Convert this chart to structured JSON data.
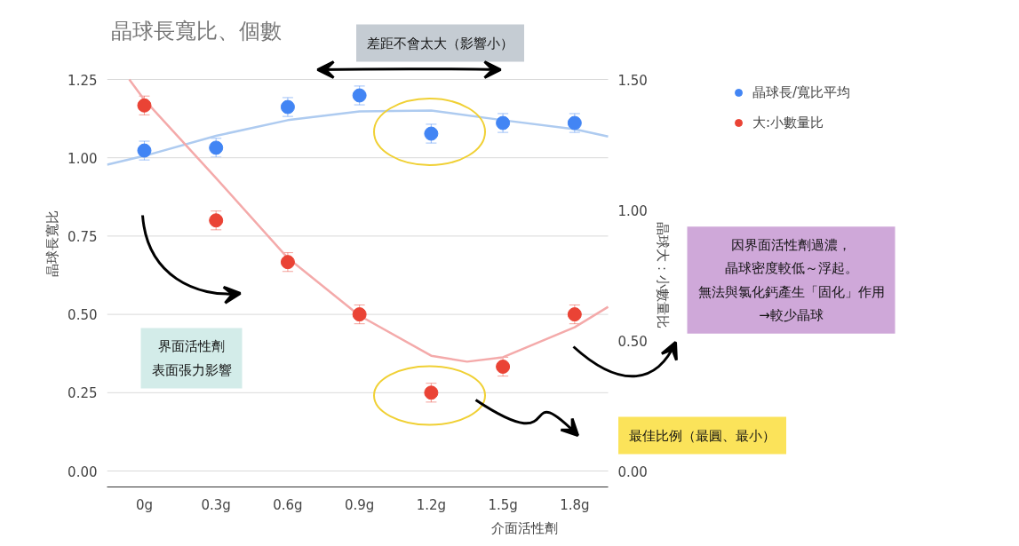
{
  "chart_data": {
    "type": "scatter",
    "title": "晶球長寬比、個數",
    "xlabel": "介面活性劑",
    "ylabel": "晶球長寬比",
    "y2label": "晶球大：小數量比",
    "x": [
      0,
      0.3,
      0.6,
      0.9,
      1.2,
      1.5,
      1.8
    ],
    "xlim": [
      -0.156,
      1.94
    ],
    "xticks": [
      {
        "value": 0,
        "label": "0g"
      },
      {
        "value": 0.3,
        "label": "0.3g"
      },
      {
        "value": 0.6,
        "label": "0.6g"
      },
      {
        "value": 0.9,
        "label": "0.9g"
      },
      {
        "value": 1.2,
        "label": "1.2g"
      },
      {
        "value": 1.5,
        "label": "1.5g"
      },
      {
        "value": 1.8,
        "label": "1.8g"
      }
    ],
    "ylim": [
      0,
      1.25
    ],
    "yticks": [
      {
        "value": 0,
        "label": "0.00"
      },
      {
        "value": 0.25,
        "label": "0.25"
      },
      {
        "value": 0.5,
        "label": "0.50"
      },
      {
        "value": 0.75,
        "label": "0.75"
      },
      {
        "value": 1,
        "label": "1.00"
      },
      {
        "value": 1.25,
        "label": "1.25"
      }
    ],
    "y2lim": [
      0,
      1.5
    ],
    "y2ticks": [
      {
        "value": 0,
        "label": "0.00"
      },
      {
        "value": 0.5,
        "label": "0.50"
      },
      {
        "value": 1,
        "label": "1.00"
      },
      {
        "value": 1.5,
        "label": "1.50"
      }
    ],
    "series": [
      {
        "type": "line",
        "color": "#aecbf0",
        "x": [
          -0.156,
          0,
          0.3,
          0.6,
          0.9,
          1.2,
          1.5,
          1.8,
          1.94
        ],
        "values": [
          0.978,
          1.006,
          1.07,
          1.12,
          1.148,
          1.151,
          1.12,
          1.091,
          1.068
        ]
      },
      {
        "type": "line",
        "color": "#f4aaaa",
        "x": [
          -0.063,
          0,
          0.3,
          0.6,
          0.9,
          1.2,
          1.35,
          1.5,
          1.8,
          1.94
        ],
        "values": [
          1.25,
          1.185,
          0.935,
          0.68,
          0.496,
          0.368,
          0.349,
          0.363,
          0.459,
          0.524
        ]
      },
      {
        "name": "晶球長/寬比平均",
        "marker": "circle",
        "color": "#4285f4",
        "values": [
          1.023,
          1.032,
          1.162,
          1.199,
          1.077,
          1.111,
          1.111
        ],
        "errors": [
          0.03,
          0.03,
          0.03,
          0.03,
          0.03,
          0.03,
          0.03
        ]
      },
      {
        "name": "大:小數量比",
        "marker": "circle",
        "color": "#ea4335",
        "values": [
          1.167,
          0.8,
          0.667,
          0.5,
          0.25,
          0.333,
          0.5
        ],
        "errors": [
          0.03,
          0.03,
          0.03,
          0.03,
          0.03,
          0.03,
          0.03
        ]
      }
    ],
    "annotations": [
      "差距不會太大（影響小）",
      "界面活性劑表面張力影響",
      "因界面活性劑過濃，晶球密度較低～浮起。無法與氯化鈣產生「固化」作用→較少晶球",
      "最佳比例（最圓、最小）"
    ],
    "grid": "y",
    "legend": "top right"
  }
}
